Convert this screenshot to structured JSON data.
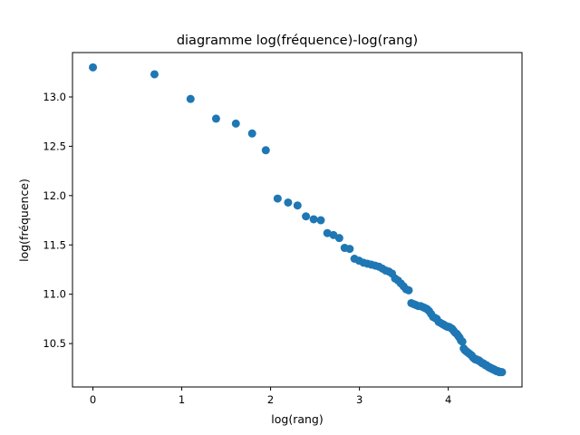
{
  "chart_data": {
    "type": "scatter",
    "title": "diagramme log(fréquence)-log(rang)",
    "xlabel": "log(rang)",
    "ylabel": "log(fréquence)",
    "xlim": [
      -0.23,
      4.83
    ],
    "ylim": [
      10.06,
      13.45
    ],
    "xticks": [
      0,
      1,
      2,
      3,
      4
    ],
    "xtick_labels": [
      "0",
      "1",
      "2",
      "3",
      "4"
    ],
    "yticks": [
      10.5,
      11.0,
      11.5,
      12.0,
      12.5,
      13.0
    ],
    "ytick_labels": [
      "10.5",
      "11.0",
      "11.5",
      "12.0",
      "12.5",
      "13.0"
    ],
    "grid": false,
    "legend": "none",
    "marker_color": "#1f77b4",
    "series": [
      {
        "points": [
          [
            0.0,
            13.3
          ],
          [
            0.693,
            13.23
          ],
          [
            1.099,
            12.98
          ],
          [
            1.386,
            12.78
          ],
          [
            1.609,
            12.73
          ],
          [
            1.792,
            12.63
          ],
          [
            1.946,
            12.46
          ],
          [
            2.079,
            11.97
          ],
          [
            2.197,
            11.93
          ],
          [
            2.303,
            11.9
          ],
          [
            2.398,
            11.79
          ],
          [
            2.485,
            11.76
          ],
          [
            2.565,
            11.75
          ],
          [
            2.639,
            11.62
          ],
          [
            2.708,
            11.6
          ],
          [
            2.773,
            11.57
          ],
          [
            2.833,
            11.47
          ],
          [
            2.89,
            11.46
          ],
          [
            2.944,
            11.36
          ],
          [
            2.996,
            11.34
          ],
          [
            3.045,
            11.32
          ],
          [
            3.091,
            11.31
          ],
          [
            3.135,
            11.3
          ],
          [
            3.178,
            11.29
          ],
          [
            3.219,
            11.28
          ],
          [
            3.258,
            11.26
          ],
          [
            3.296,
            11.24
          ],
          [
            3.332,
            11.23
          ],
          [
            3.367,
            11.21
          ],
          [
            3.401,
            11.16
          ],
          [
            3.434,
            11.14
          ],
          [
            3.466,
            11.11
          ],
          [
            3.497,
            11.08
          ],
          [
            3.526,
            11.05
          ],
          [
            3.555,
            11.04
          ],
          [
            3.584,
            10.91
          ],
          [
            3.611,
            10.9
          ],
          [
            3.638,
            10.89
          ],
          [
            3.664,
            10.88
          ],
          [
            3.689,
            10.88
          ],
          [
            3.714,
            10.87
          ],
          [
            3.738,
            10.86
          ],
          [
            3.761,
            10.85
          ],
          [
            3.784,
            10.83
          ],
          [
            3.807,
            10.8
          ],
          [
            3.829,
            10.77
          ],
          [
            3.85,
            10.76
          ],
          [
            3.871,
            10.75
          ],
          [
            3.892,
            10.72
          ],
          [
            3.912,
            10.71
          ],
          [
            3.932,
            10.7
          ],
          [
            3.951,
            10.69
          ],
          [
            3.97,
            10.68
          ],
          [
            3.989,
            10.67
          ],
          [
            4.007,
            10.67
          ],
          [
            4.025,
            10.66
          ],
          [
            4.043,
            10.65
          ],
          [
            4.06,
            10.63
          ],
          [
            4.078,
            10.61
          ],
          [
            4.094,
            10.6
          ],
          [
            4.111,
            10.58
          ],
          [
            4.127,
            10.56
          ],
          [
            4.143,
            10.53
          ],
          [
            4.159,
            10.52
          ],
          [
            4.174,
            10.45
          ],
          [
            4.19,
            10.43
          ],
          [
            4.205,
            10.42
          ],
          [
            4.22,
            10.41
          ],
          [
            4.234,
            10.4
          ],
          [
            4.248,
            10.39
          ],
          [
            4.263,
            10.38
          ],
          [
            4.277,
            10.36
          ],
          [
            4.29,
            10.35
          ],
          [
            4.304,
            10.34
          ],
          [
            4.317,
            10.34
          ],
          [
            4.331,
            10.33
          ],
          [
            4.344,
            10.33
          ],
          [
            4.357,
            10.32
          ],
          [
            4.369,
            10.31
          ],
          [
            4.382,
            10.3
          ],
          [
            4.394,
            10.3
          ],
          [
            4.407,
            10.29
          ],
          [
            4.419,
            10.28
          ],
          [
            4.431,
            10.28
          ],
          [
            4.443,
            10.27
          ],
          [
            4.454,
            10.26
          ],
          [
            4.466,
            10.26
          ],
          [
            4.477,
            10.25
          ],
          [
            4.489,
            10.25
          ],
          [
            4.5,
            10.24
          ],
          [
            4.511,
            10.24
          ],
          [
            4.522,
            10.23
          ],
          [
            4.533,
            10.23
          ],
          [
            4.543,
            10.22
          ],
          [
            4.554,
            10.22
          ],
          [
            4.564,
            10.22
          ],
          [
            4.575,
            10.21
          ],
          [
            4.585,
            10.21
          ],
          [
            4.595,
            10.21
          ],
          [
            4.605,
            10.21
          ]
        ]
      }
    ]
  }
}
